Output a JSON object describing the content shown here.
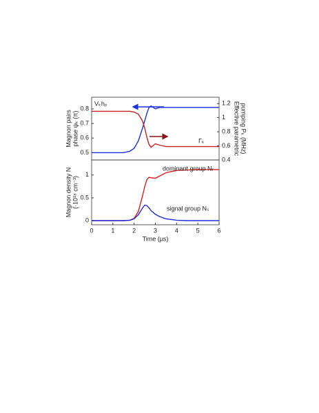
{
  "chart_data": [
    {
      "type": "line",
      "ylabel": [
        "Magnon pairs",
        "phase ψₖ (π)"
      ],
      "y2label": [
        "Effective parametric",
        "pumping Pₖ (MHz)"
      ],
      "x": [
        0,
        0.5,
        1,
        1.5,
        1.8,
        2,
        2.2,
        2.4,
        2.5,
        2.6,
        2.7,
        2.8,
        3,
        3.2,
        3.5,
        4,
        4.5,
        5,
        5.5,
        6
      ],
      "xlim": [
        0,
        6
      ],
      "ylim": [
        0.45,
        0.88
      ],
      "yticks": [
        0.5,
        0.6,
        0.7,
        0.8
      ],
      "y2lim": [
        0.4,
        1.29
      ],
      "y2ticks": [
        0.4,
        0.6,
        0.8,
        1.0,
        1.2
      ],
      "annotations": [
        "Vₖhₚ",
        "Γₖ"
      ],
      "series": [
        {
          "name": "Vₖhₚ",
          "color": "#1a2ee0",
          "values": [
            0.5,
            0.5,
            0.5,
            0.5,
            0.51,
            0.53,
            0.58,
            0.67,
            0.72,
            0.77,
            0.81,
            0.82,
            0.8,
            0.81,
            0.81,
            0.81,
            0.81,
            0.81,
            0.81,
            0.81
          ]
        },
        {
          "name": "Γₖ",
          "color": "#c81e1e",
          "axis": "y2",
          "values": [
            1.09,
            1.09,
            1.09,
            1.09,
            1.09,
            1.08,
            1.05,
            0.95,
            0.85,
            0.72,
            0.62,
            0.58,
            0.63,
            0.61,
            0.59,
            0.59,
            0.59,
            0.59,
            0.59,
            0.59
          ]
        }
      ]
    },
    {
      "type": "line",
      "xlabel": "Time (μs)",
      "ylabel": [
        "Magnon density N",
        "(·10¹⁸ cm⁻³)"
      ],
      "x": [
        0,
        0.5,
        1,
        1.5,
        1.8,
        2,
        2.2,
        2.4,
        2.5,
        2.6,
        2.7,
        2.8,
        3,
        3.2,
        3.5,
        4,
        4.5,
        5,
        5.5,
        6
      ],
      "xlim": [
        0,
        6
      ],
      "xticks": [
        0,
        1,
        2,
        3,
        4,
        5,
        6
      ],
      "ylim": [
        -0.09,
        1.33
      ],
      "yticks": [
        0.0,
        0.5,
        1.0
      ],
      "annotations": [
        "dominant group Nᵣ",
        "signal group Nₛ"
      ],
      "series": [
        {
          "name": "dominant group Nᵣ",
          "color": "#e01a1a",
          "values": [
            0,
            0,
            0,
            0,
            0.01,
            0.05,
            0.2,
            0.55,
            0.75,
            0.9,
            0.95,
            0.94,
            0.93,
            0.98,
            1.05,
            1.1,
            1.11,
            1.12,
            1.12,
            1.12
          ]
        },
        {
          "name": "signal group Nₛ",
          "color": "#1a2ee0",
          "values": [
            0,
            0,
            0,
            0,
            0.01,
            0.04,
            0.13,
            0.28,
            0.34,
            0.33,
            0.28,
            0.22,
            0.14,
            0.09,
            0.04,
            0.01,
            0,
            0,
            0,
            0
          ]
        }
      ]
    }
  ]
}
